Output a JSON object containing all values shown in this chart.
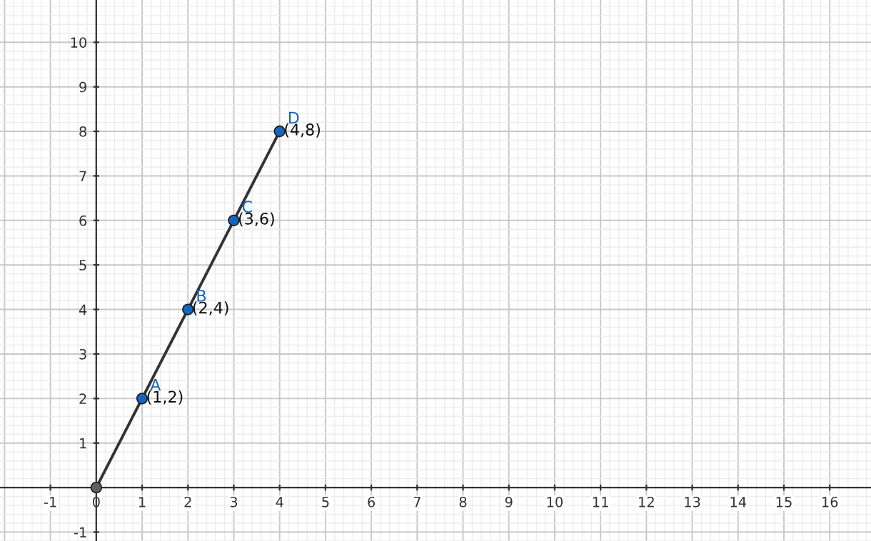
{
  "chart_data": {
    "type": "line",
    "xlim": [
      -2.1,
      16.9
    ],
    "ylim": [
      -1.2,
      10.95
    ],
    "xticks": [
      -1,
      0,
      1,
      2,
      3,
      4,
      5,
      6,
      7,
      8,
      9,
      10,
      11,
      12,
      13,
      14,
      15,
      16
    ],
    "yticks": [
      -1,
      1,
      2,
      3,
      4,
      5,
      6,
      7,
      8,
      9,
      10
    ],
    "grid": true,
    "series": [
      {
        "color": "#333333",
        "x": [
          0,
          1,
          2,
          3,
          4
        ],
        "values": [
          0,
          2,
          4,
          6,
          8
        ],
        "marker": "none",
        "line_style": "solid"
      },
      {
        "type": "scatter",
        "colors": [
          "#606060",
          "#1565c0",
          "#1565c0",
          "#1565c0",
          "#1565c0"
        ],
        "x": [
          0,
          1,
          2,
          3,
          4
        ],
        "values": [
          0,
          2,
          4,
          6,
          8
        ],
        "marker": "circle"
      }
    ],
    "annotations": [
      {
        "text": "A",
        "x": 1,
        "y": 2
      },
      {
        "text": "(1,2)",
        "x": 1,
        "y": 2
      },
      {
        "text": "B",
        "x": 2,
        "y": 4
      },
      {
        "text": "(2,4)",
        "x": 2,
        "y": 4
      },
      {
        "text": "C",
        "x": 3,
        "y": 6
      },
      {
        "text": "(3,6)",
        "x": 3,
        "y": 6
      },
      {
        "text": "D",
        "x": 4,
        "y": 8
      },
      {
        "text": "(4,8)",
        "x": 4,
        "y": 8
      }
    ]
  }
}
